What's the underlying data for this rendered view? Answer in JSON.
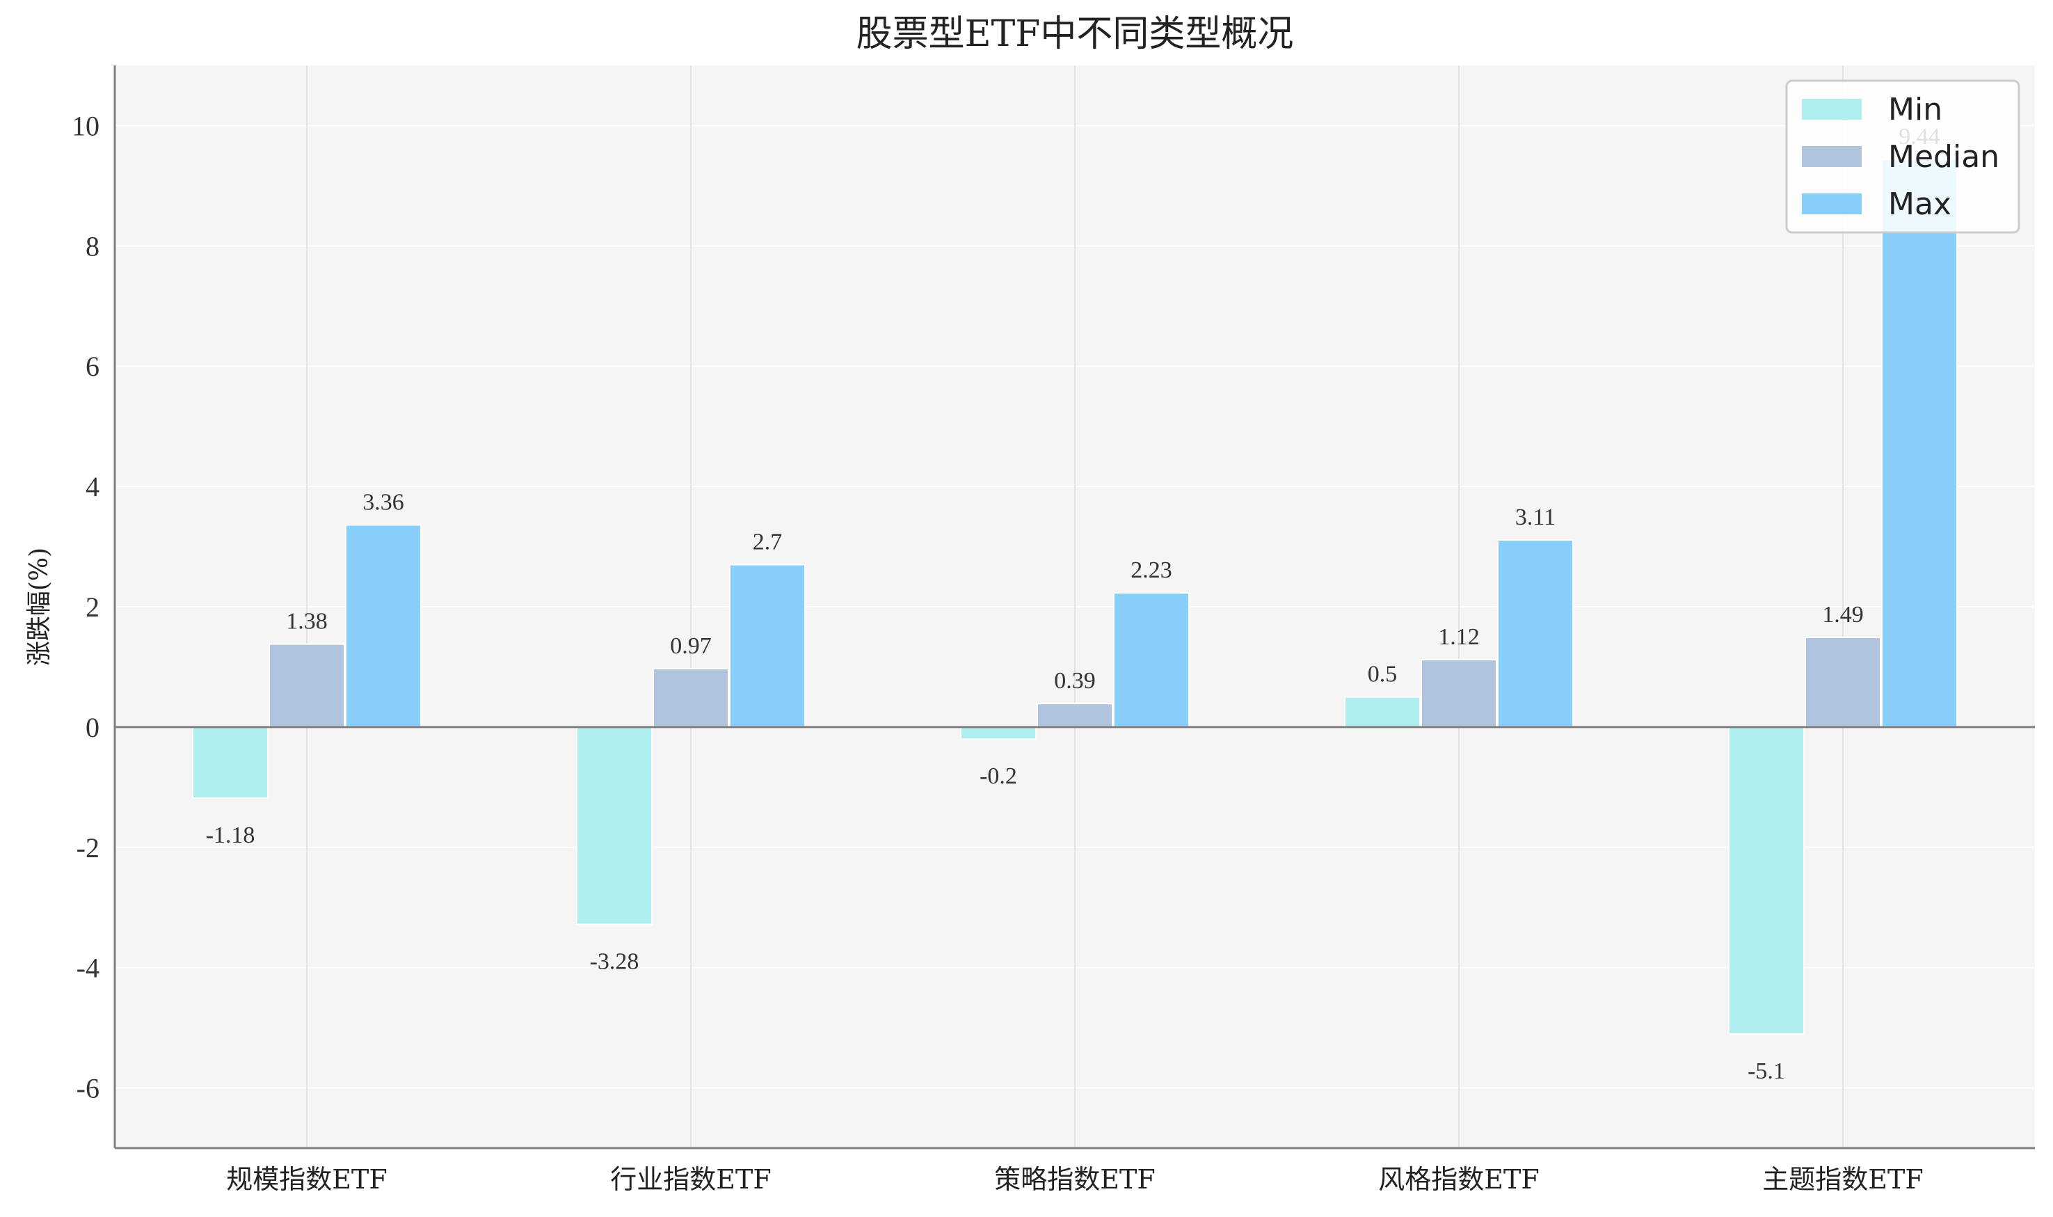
{
  "chart_data": {
    "type": "bar",
    "title": "股票型ETF中不同类型概况",
    "xlabel": "",
    "ylabel": "涨跌幅(%)",
    "categories": [
      "规模指数ETF",
      "行业指数ETF",
      "策略指数ETF",
      "风格指数ETF",
      "主题指数ETF"
    ],
    "series": [
      {
        "name": "Min",
        "color": "#AFEEEE",
        "values": [
          -1.18,
          -3.28,
          -0.2,
          0.5,
          -5.1
        ]
      },
      {
        "name": "Median",
        "color": "#B0C4DE",
        "values": [
          1.38,
          0.97,
          0.39,
          1.12,
          1.49
        ]
      },
      {
        "name": "Max",
        "color": "#87CEFA",
        "values": [
          3.36,
          2.7,
          2.23,
          3.11,
          9.44
        ]
      }
    ],
    "ylim": [
      -7,
      11
    ],
    "yticks": [
      -6,
      -4,
      -2,
      0,
      2,
      4,
      6,
      8,
      10
    ],
    "grid": true,
    "legend": "top-right",
    "background": "#F5F5F5"
  }
}
